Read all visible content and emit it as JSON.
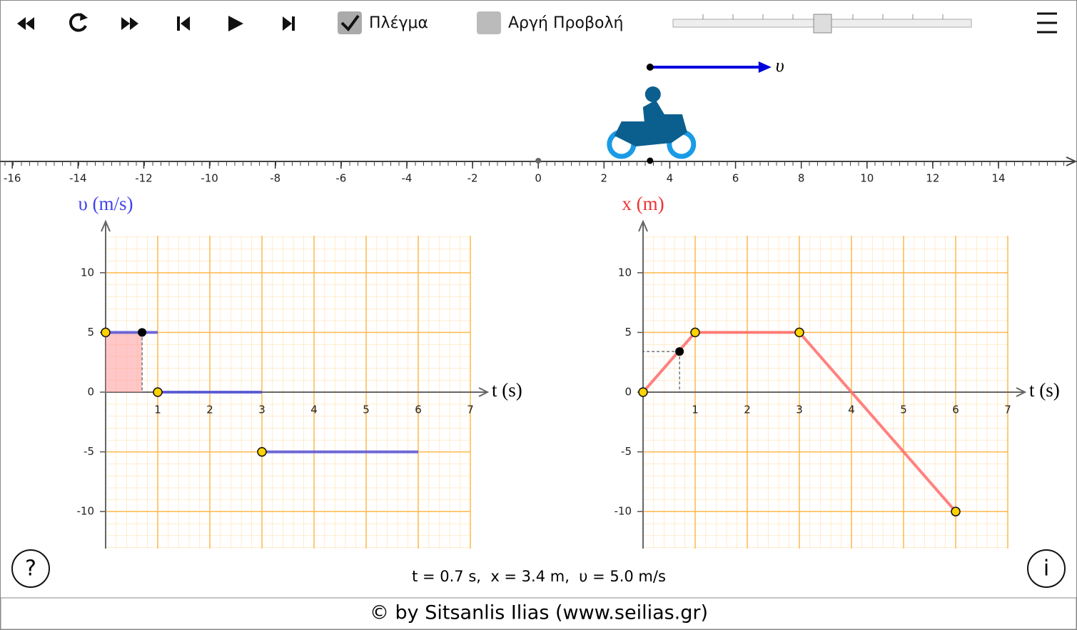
{
  "toolbar": {
    "grid_label": "Πλέγμα",
    "grid_checked": true,
    "slow_label": "Αργή Προβολή",
    "slow_checked": false
  },
  "number_line": {
    "xlim": [
      -16.2,
      16.3
    ],
    "xticks": [
      -16,
      -14,
      -12,
      -10,
      -8,
      -6,
      -4,
      -2,
      0,
      2,
      4,
      6,
      8,
      10,
      12,
      14
    ],
    "position": 3.4,
    "vector_label": "υ"
  },
  "chart_data": [
    {
      "type": "line",
      "y_label": "υ (m/s)",
      "x_label": "t (s)",
      "label_color": "#4444ee",
      "color": "#5555dd",
      "x": [
        0,
        1,
        null,
        1,
        3,
        null,
        3,
        6
      ],
      "values": [
        5,
        5,
        null,
        0,
        0,
        null,
        -5,
        -5
      ],
      "points": {
        "x": [
          0,
          1,
          3
        ],
        "values": [
          5,
          0,
          -5
        ]
      },
      "current": {
        "x": 0.7,
        "value": 5
      },
      "fill_area": true,
      "xlim": [
        0,
        7
      ],
      "ylim": [
        -13.1,
        13.1
      ],
      "xticks": [
        1,
        2,
        3,
        4,
        5,
        6,
        7
      ],
      "yticks": [
        -10,
        -5,
        0,
        5,
        10
      ],
      "grid": true
    },
    {
      "type": "line",
      "y_label": "x (m)",
      "x_label": "t (s)",
      "label_color": "#ee3333",
      "color": "#ff6b6b",
      "x": [
        0,
        1,
        3,
        6
      ],
      "values": [
        0,
        5,
        5,
        -10
      ],
      "points": {
        "x": [
          0,
          1,
          3,
          6
        ],
        "values": [
          0,
          5,
          5,
          -10
        ]
      },
      "current": {
        "x": 0.7,
        "value": 3.4
      },
      "fill_area": false,
      "xlim": [
        0,
        7
      ],
      "ylim": [
        -13.1,
        13.1
      ],
      "xticks": [
        1,
        2,
        3,
        4,
        5,
        6,
        7
      ],
      "yticks": [
        -10,
        -5,
        0,
        5,
        10
      ],
      "grid": true
    }
  ],
  "status": "t = 0.7 s,  x = 3.4 m,  υ = 5.0 m/s",
  "help": "?",
  "info": "i",
  "footer": "© by Sitsanlis Ilias (www.seilias.gr)"
}
